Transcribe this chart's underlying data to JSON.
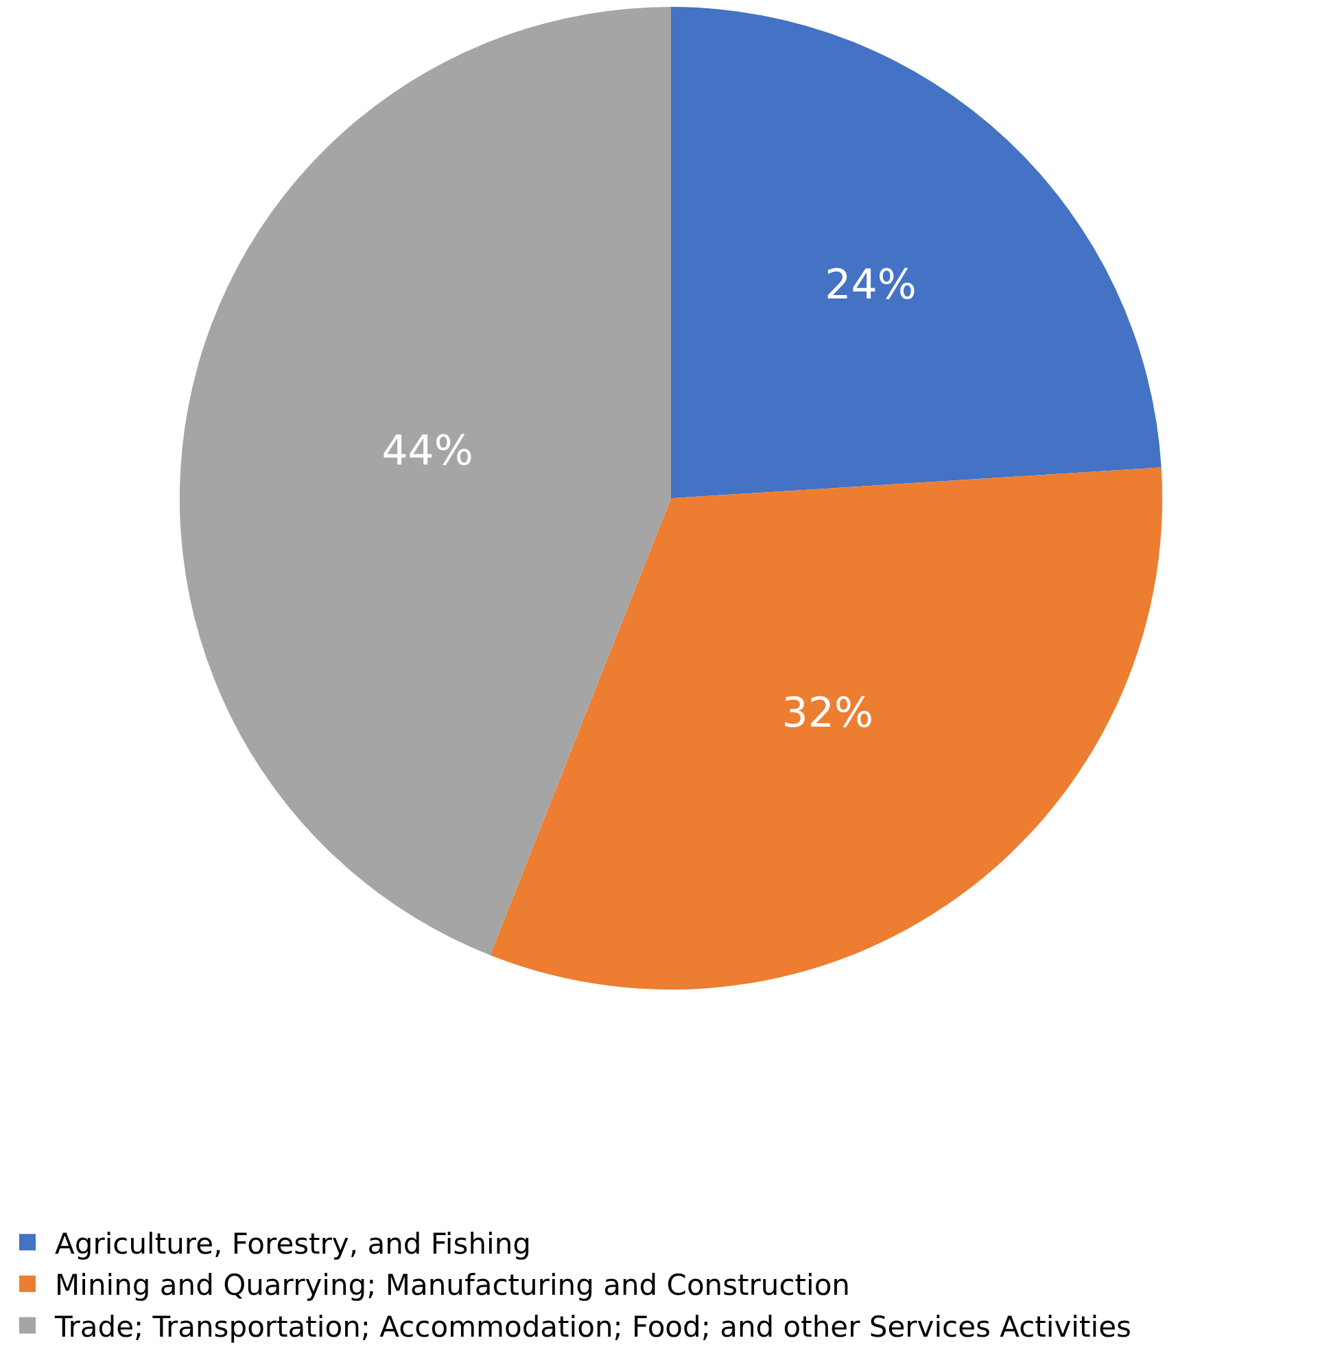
{
  "chart_data": {
    "type": "pie",
    "categories": [
      "Agriculture, Forestry, and Fishing",
      "Mining and Quarrying; Manufacturing and Construction",
      "Trade; Transportation; Accommodation; Food; and other Services Activities"
    ],
    "values": [
      24,
      32,
      44
    ],
    "value_labels": [
      "24%",
      "32%",
      "44%"
    ],
    "colors": [
      "#4472c4",
      "#ed7d31",
      "#a5a5a5"
    ],
    "legend": "bottom"
  }
}
